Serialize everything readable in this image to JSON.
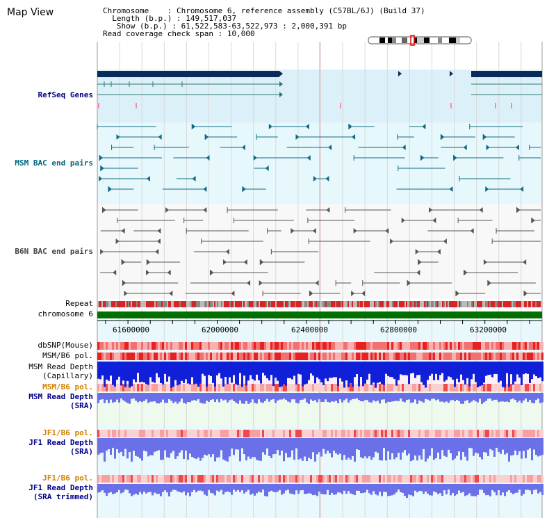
{
  "page": {
    "title": "Map View"
  },
  "info": {
    "chromosome_key": "Chromosome",
    "chromosome_val": "Chromosome 6, reference assembly (C57BL/6J) (Build 37)",
    "length_key": "Length (b.p.)",
    "length_val": "149,517,037",
    "show_key": "Show (b.p.)",
    "show_val": "61,522,583-63,522,973 : 2,000,391 bp",
    "coverage_key": "Read coverage check span",
    "coverage_val": "10,000"
  },
  "tracks": {
    "refseq": "RefSeq Genes",
    "msm_bac": "MSM BAC end pairs",
    "b6n_bac": "B6N BAC end pairs",
    "repeat": "Repeat",
    "chromosome": "chromosome 6",
    "dbsnp": "dbSNP(Mouse)",
    "msm_b6_pol_1": "MSM/B6 pol.",
    "msm_read_depth_cap_1": "MSM Read Depth",
    "msm_read_depth_cap_2": "(Capillary)",
    "msm_b6_pol_2": "MSM/B6 pol.",
    "msm_read_depth_sra_1": "MSM Read Depth",
    "msm_read_depth_sra_2": "(SRA)",
    "jf1_b6_pol_1": "JF1/B6 pol.",
    "jf1_read_depth_sra_1": "JF1 Read Depth",
    "jf1_read_depth_sra_2": "(SRA)",
    "jf1_b6_pol_2": "JF1/B6 pol.",
    "jf1_read_depth_trim_1": "JF1 Read Depth",
    "jf1_read_depth_trim_2": "(SRA trimmed)"
  },
  "axis": {
    "ticks": [
      "61600000",
      "62000000",
      "62400000",
      "62800000",
      "63200000"
    ]
  },
  "colors": {
    "refseq_bg": "#dcf0fa",
    "msm_bg": "#e6f8fc",
    "b6n_bg": "#f8f8f8",
    "gene_dark": "#0a2a5a",
    "teal": "#106a82",
    "gray": "#555555",
    "chrom_green": "#007000",
    "snp_red": "#ee3333",
    "depth_blue": "#1020d8",
    "sra_blue": "#6a70e8"
  }
}
